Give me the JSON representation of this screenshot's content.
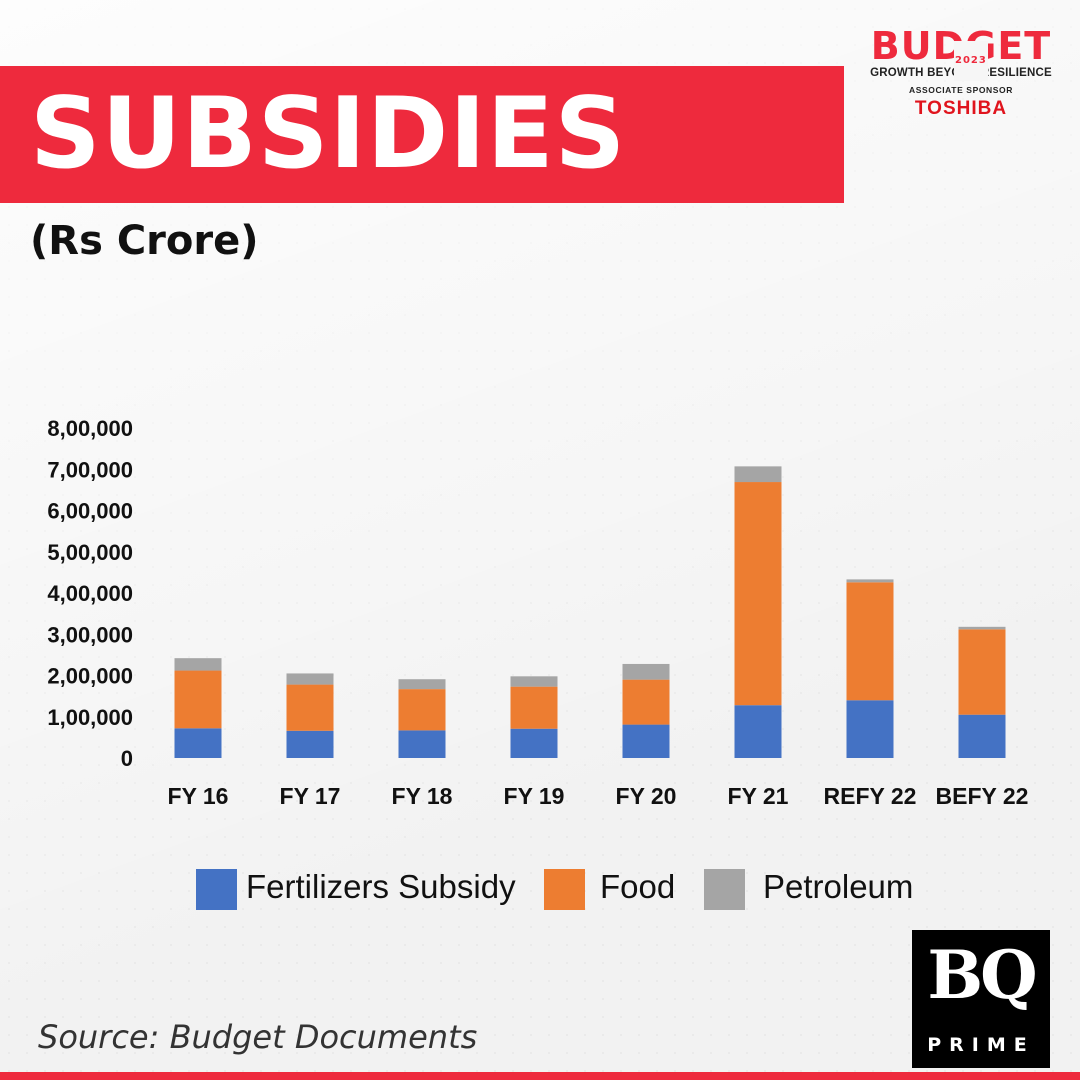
{
  "header": {
    "title": "SUBSIDIES",
    "subtitle": "(Rs Crore)"
  },
  "brand": {
    "budget": "BUDGET",
    "year": "2023",
    "tagline": "GROWTH BEYOND RESILIENCE",
    "associate": "ASSOCIATE SPONSOR",
    "sponsor": "TOSHIBA"
  },
  "colors": {
    "accent": "#ee2a3d",
    "fertilizers": "#4472c4",
    "food": "#ed7d31",
    "petroleum": "#a5a5a5"
  },
  "chart_data": {
    "type": "bar",
    "stacked": true,
    "title": "SUBSIDIES",
    "ylabel": "Rs Crore",
    "xlabel": "",
    "categories": [
      "FY 16",
      "FY 17",
      "FY 18",
      "FY 19",
      "FY 20",
      "FY 21",
      "REFY 22",
      "BEFY 22"
    ],
    "series": [
      {
        "name": "Fertilizers Subsidy",
        "color": "#4472c4",
        "values": [
          72000,
          66000,
          67000,
          71000,
          81000,
          128000,
          140000,
          105000
        ]
      },
      {
        "name": "Food",
        "color": "#ed7d31",
        "values": [
          140000,
          112000,
          100000,
          102000,
          109000,
          541000,
          286000,
          207000
        ]
      },
      {
        "name": "Petroleum",
        "color": "#a5a5a5",
        "values": [
          30000,
          27000,
          24000,
          25000,
          38000,
          38000,
          7000,
          6000
        ]
      }
    ],
    "ylim": [
      0,
      800000
    ],
    "yticks": [
      0,
      100000,
      200000,
      300000,
      400000,
      500000,
      600000,
      700000,
      800000
    ],
    "ytick_labels": [
      "0",
      "1,00,000",
      "2,00,000",
      "3,00,000",
      "4,00,000",
      "5,00,000",
      "6,00,000",
      "7,00,000",
      "8,00,000"
    ],
    "grid": false,
    "legend_position": "bottom"
  },
  "legend": {
    "items": [
      {
        "label": "Fertilizers Subsidy",
        "color": "#4472c4"
      },
      {
        "label": "Food",
        "color": "#ed7d31"
      },
      {
        "label": "Petroleum",
        "color": "#a5a5a5"
      }
    ]
  },
  "footer": {
    "source": "Source: Budget Documents",
    "logo_letters": "BQ",
    "logo_sub": "PRIME"
  }
}
